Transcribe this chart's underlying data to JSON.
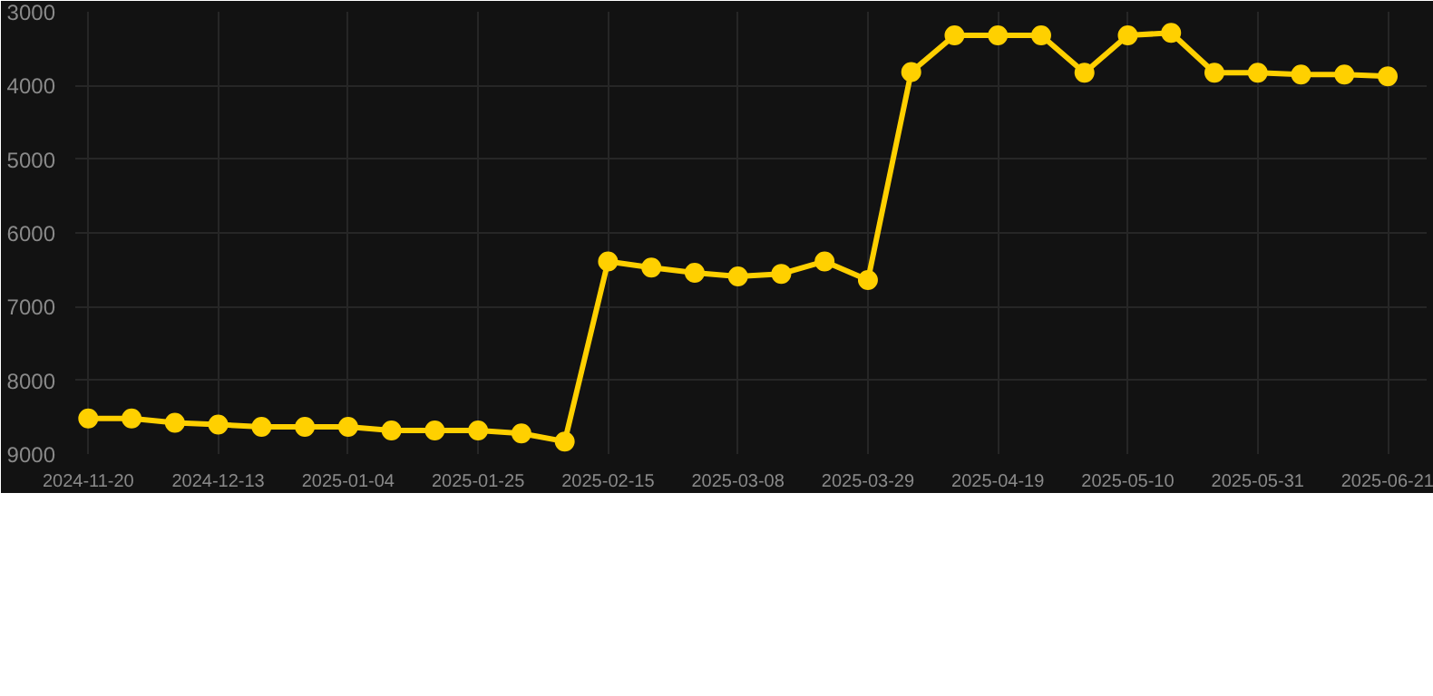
{
  "chart_data": {
    "type": "line",
    "categories": [
      "2024-11-20",
      null,
      null,
      "2024-12-13",
      null,
      null,
      "2025-01-04",
      null,
      null,
      "2025-01-25",
      null,
      null,
      "2025-02-15",
      null,
      null,
      "2025-03-08",
      null,
      null,
      "2025-03-29",
      null,
      null,
      "2025-04-19",
      null,
      null,
      "2025-05-10",
      null,
      null,
      "2025-05-31",
      null,
      null,
      "2025-06-21"
    ],
    "series": [
      {
        "color": "#ffd000",
        "values": [
          8518,
          8518,
          8577,
          8600,
          8630,
          8630,
          8630,
          8680,
          8680,
          8680,
          8720,
          8830,
          6387,
          6470,
          6540,
          6590,
          6555,
          6387,
          6640,
          3817,
          3320,
          3320,
          3320,
          3826,
          3320,
          3286,
          3826,
          3826,
          3851,
          3851,
          3876
        ]
      }
    ],
    "ylim": [
      9000,
      3000
    ],
    "yticks": [
      3000,
      4000,
      5000,
      6000,
      7000,
      8000,
      9000
    ],
    "grid": true,
    "marker": "circle",
    "line_style": "solid"
  }
}
